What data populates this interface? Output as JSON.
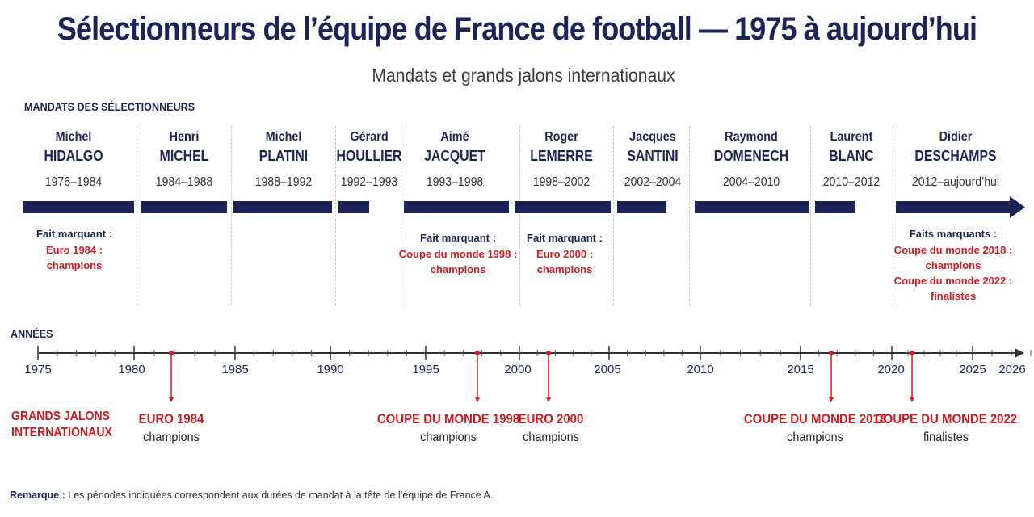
{
  "title": "Sélectionneurs de l’équipe de France de football — 1975 à aujourd’hui",
  "subtitle": "Mandats et grands jalons internationaux",
  "sections": {
    "mandats": "MANDATS DES SÉLECTIONNEURS",
    "annees": "ANNÉES",
    "jalons_line1": "GRANDS JALONS",
    "jalons_line2": "INTERNATIONAUX"
  },
  "coaches": [
    {
      "first": "Michel",
      "last": "HIDALGO",
      "period": "1976–1984"
    },
    {
      "first": "Henri",
      "last": "MICHEL",
      "period": "1984–1988"
    },
    {
      "first": "Michel",
      "last": "PLATINI",
      "period": "1988–1992"
    },
    {
      "first": "Gérard",
      "last": "HOULLIER",
      "period": "1992–1993"
    },
    {
      "first": "Aimé",
      "last": "JACQUET",
      "period": "1993–1998"
    },
    {
      "first": "Roger",
      "last": "LEMERRE",
      "period": "1998–2002"
    },
    {
      "first": "Jacques",
      "last": "SANTINI",
      "period": "2002–2004"
    },
    {
      "first": "Raymond",
      "last": "DOMENECH",
      "period": "2004–2010"
    },
    {
      "first": "Laurent",
      "last": "BLANC",
      "period": "2010–2012"
    },
    {
      "first": "Didier",
      "last": "DESCHAMPS",
      "period": "2012–aujourd’hui"
    }
  ],
  "highlights": [
    {
      "label": "Fait marquant :",
      "items": [
        "Euro 1984 :",
        "champions"
      ]
    },
    {
      "label": "Fait marquant :",
      "items": [
        "Coupe du monde 1998 :",
        "champions"
      ]
    },
    {
      "label": "Fait marquant :",
      "items": [
        "Euro 2000 :",
        "champions"
      ]
    },
    {
      "label": "Faits marquants :",
      "items": [
        "Coupe du monde 2018 :",
        "champions",
        "Coupe du monde 2022 :",
        "finalistes"
      ]
    }
  ],
  "axis_ticks": [
    "1975",
    "1980",
    "1985",
    "1990",
    "1995",
    "2000",
    "2005",
    "2010",
    "2015",
    "2020",
    "2025",
    "2026"
  ],
  "milestones": [
    {
      "event": "EURO 1984",
      "result": "champions"
    },
    {
      "event": "COUPE DU MONDE 1998",
      "result": "champions"
    },
    {
      "event": "EURO 2000",
      "result": "champions"
    },
    {
      "event": "COUPE DU MONDE 2018",
      "result": "champions"
    },
    {
      "event": "COUPE DU MONDE 2022",
      "result": "finalistes"
    }
  ],
  "note": {
    "label": "Remarque :",
    "text": "Les périodes indiquées correspondent aux durées de mandat à la tête de l’équipe de France A."
  },
  "colors": {
    "navy": "#1b2357",
    "red": "#d41a1f",
    "separator": "#c8c8c8"
  }
}
